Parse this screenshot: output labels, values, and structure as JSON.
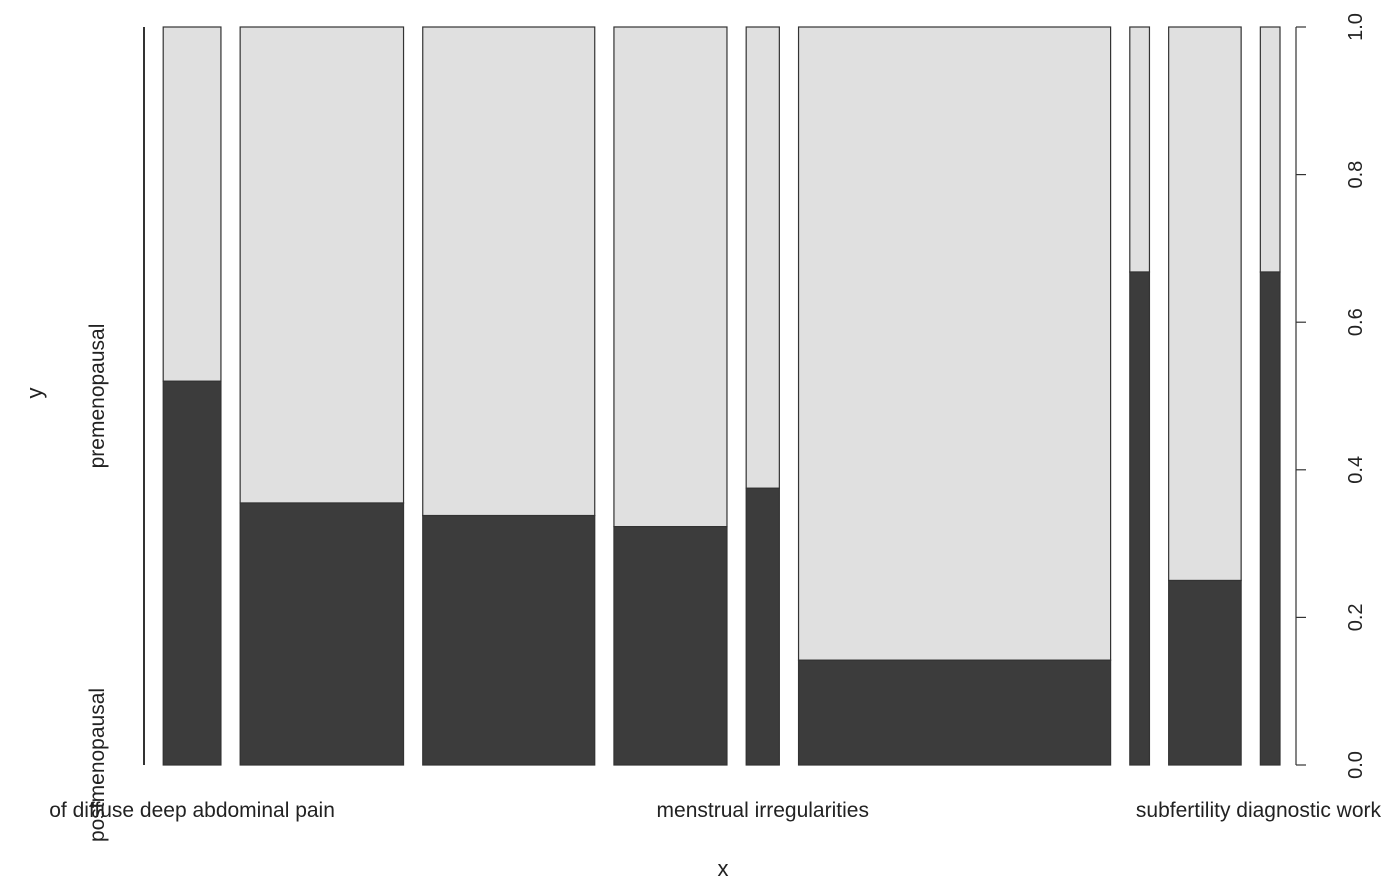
{
  "chart_data": {
    "type": "spineplot",
    "xlabel": "x",
    "ylabel": "y",
    "ylim": [
      0,
      1
    ],
    "y_ticks": [
      "0.0",
      "0.2",
      "0.4",
      "0.6",
      "0.8",
      "1.0"
    ],
    "y_categories": [
      "postmenopausal",
      "premenopausal"
    ],
    "x_tick_labels": [
      "of diffuse deep abdominal pain",
      "menstrual irregularities",
      "subfertility diagnostic workup"
    ],
    "x_tick_label_columns": [
      1,
      5,
      9
    ],
    "columns": [
      {
        "share": 0.0,
        "postmenopausal": 0.0
      },
      {
        "share": 0.047,
        "postmenopausal": 0.52
      },
      {
        "share": 0.133,
        "postmenopausal": 0.355
      },
      {
        "share": 0.14,
        "postmenopausal": 0.338
      },
      {
        "share": 0.092,
        "postmenopausal": 0.323
      },
      {
        "share": 0.027,
        "postmenopausal": 0.375
      },
      {
        "share": 0.254,
        "postmenopausal": 0.142
      },
      {
        "share": 0.016,
        "postmenopausal": 0.668
      },
      {
        "share": 0.059,
        "postmenopausal": 0.25
      },
      {
        "share": 0.016,
        "postmenopausal": 0.668
      }
    ],
    "colors": {
      "postmenopausal": "#3c3c3c",
      "premenopausal": "#e0e0e0",
      "border": "#333333"
    }
  }
}
